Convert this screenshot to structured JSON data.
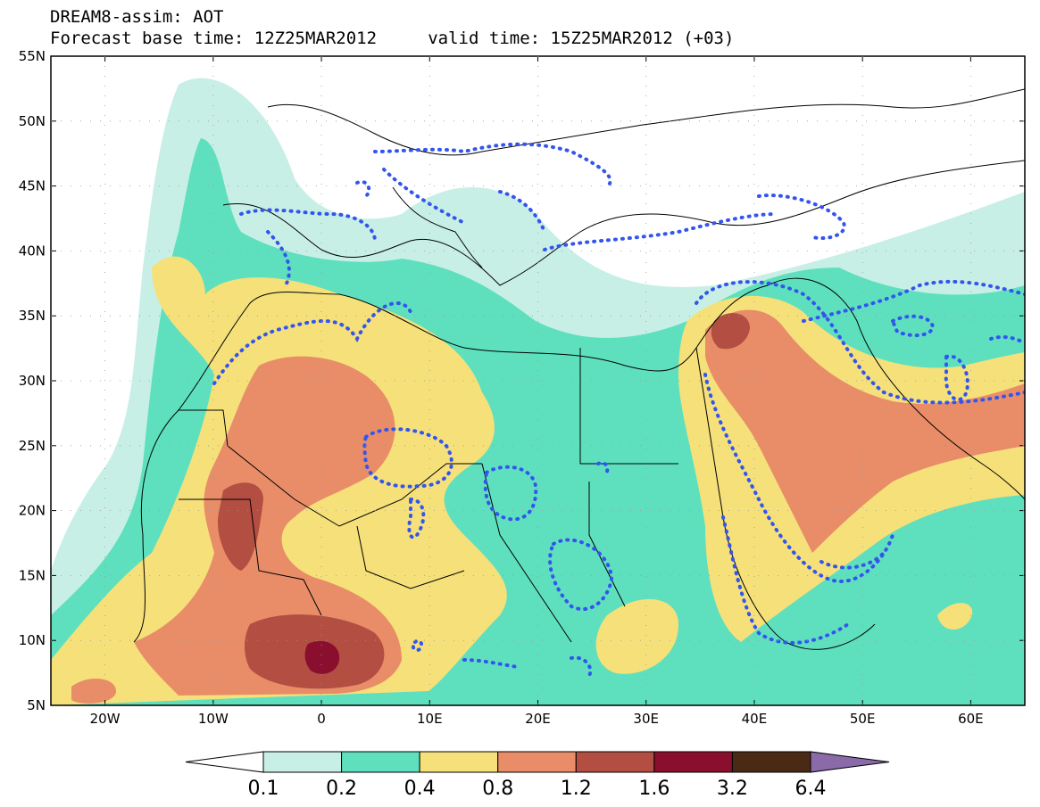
{
  "header": {
    "title_line1": "DREAM8-assim: AOT",
    "title_line2": "Forecast base time: 12Z25MAR2012     valid time: 15Z25MAR2012 (+03)"
  },
  "axes": {
    "lat_labels": [
      "55N",
      "50N",
      "45N",
      "40N",
      "35N",
      "30N",
      "25N",
      "20N",
      "15N",
      "10N",
      "5N"
    ],
    "lat_values": [
      55,
      50,
      45,
      40,
      35,
      30,
      25,
      20,
      15,
      10,
      5
    ],
    "lon_labels": [
      "20W",
      "10W",
      "0",
      "10E",
      "20E",
      "30E",
      "40E",
      "50E",
      "60E"
    ],
    "lon_values": [
      -20,
      -10,
      0,
      10,
      20,
      30,
      40,
      50,
      60
    ],
    "lon_range": [
      -25,
      65
    ],
    "lat_range": [
      5,
      55
    ]
  },
  "colorbar": {
    "labels": [
      "0.1",
      "0.2",
      "0.4",
      "0.8",
      "1.2",
      "1.6",
      "3.2",
      "6.4"
    ],
    "colors": [
      "#ffffff",
      "#c8efe6",
      "#5ee0be",
      "#f5e07a",
      "#e88d68",
      "#b24e42",
      "#8a0f2e",
      "#4a2a14",
      "#8a6aa8"
    ]
  },
  "legend_colors": {
    "contour_dots": "#3355ee",
    "coastline": "#000000"
  }
}
